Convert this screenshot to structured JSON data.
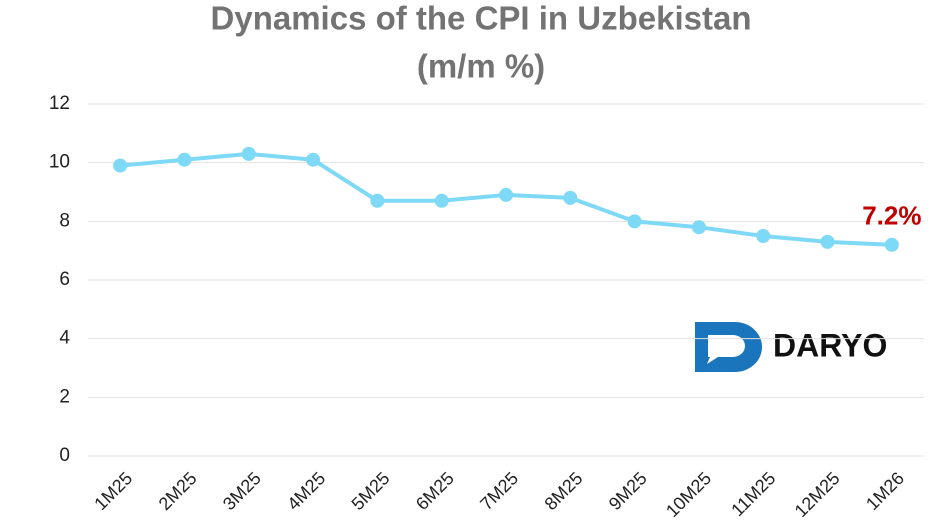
{
  "chart_data": {
    "type": "line",
    "title": "Dynamics of the CPI in Uzbekistan",
    "subtitle": "(m/m %)",
    "categories": [
      "1M25",
      "2M25",
      "3M25",
      "4M25",
      "5M25",
      "6M25",
      "7M25",
      "8M25",
      "9M25",
      "10M25",
      "11M25",
      "12M25",
      "1M26"
    ],
    "series": [
      {
        "name": "CPI",
        "color": "#7dd9f6",
        "values": [
          9.9,
          10.1,
          10.3,
          10.1,
          8.7,
          8.7,
          8.9,
          8.8,
          8.0,
          7.8,
          7.5,
          7.3,
          7.2
        ],
        "value_labels": [
          null,
          null,
          null,
          null,
          null,
          null,
          null,
          null,
          null,
          null,
          null,
          null,
          "7.2%"
        ]
      }
    ],
    "ylim": [
      0,
      12
    ],
    "yticks": [
      0,
      2,
      4,
      6,
      8,
      10,
      12
    ],
    "grid": true,
    "logo": "DARYO"
  }
}
